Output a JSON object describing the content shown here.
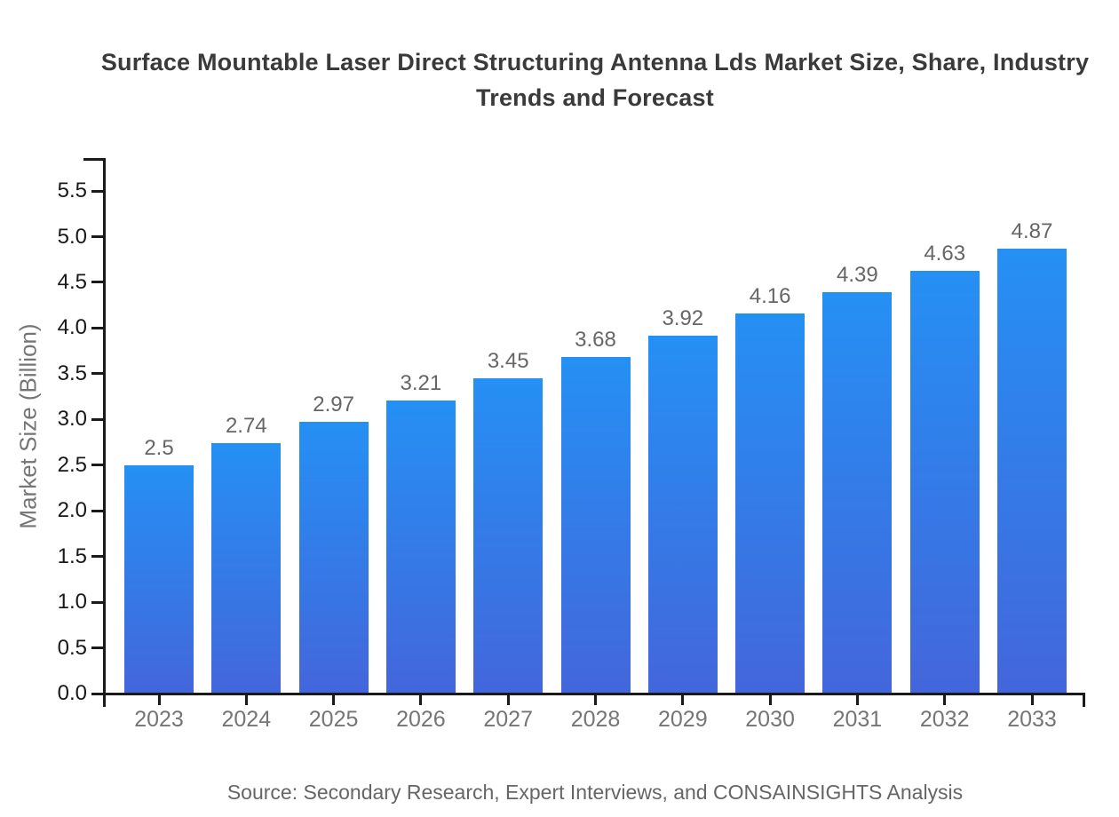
{
  "page": {
    "background_color": "#ffffff"
  },
  "chart_data": {
    "type": "bar",
    "title": "Surface Mountable Laser Direct Structuring Antenna Lds Market Size, Share, Industry Trends and Forecast",
    "ylabel": "Market Size (Billion)",
    "xlabel": "",
    "source_note": "Source: Secondary Research, Expert Interviews, and CONSAINSIGHTS Analysis",
    "categories": [
      "2023",
      "2024",
      "2025",
      "2026",
      "2027",
      "2028",
      "2029",
      "2030",
      "2031",
      "2032",
      "2033"
    ],
    "values": [
      2.5,
      2.74,
      2.97,
      3.21,
      3.45,
      3.68,
      3.92,
      4.16,
      4.39,
      4.63,
      4.87
    ],
    "value_labels": [
      "2.5",
      "2.74",
      "2.97",
      "3.21",
      "3.45",
      "3.68",
      "3.92",
      "4.16",
      "4.39",
      "4.63",
      "4.87"
    ],
    "ytick_labels": [
      "0.0",
      "0.5",
      "1.0",
      "1.5",
      "2.0",
      "2.5",
      "3.0",
      "3.5",
      "4.0",
      "4.5",
      "5.0",
      "5.5"
    ],
    "ylim": [
      0,
      5.86
    ],
    "grid": false,
    "legend_visible": false,
    "colors": {
      "bar_gradient_top": "#2590f4",
      "bar_gradient_bottom": "#4366db",
      "axis": "#1a1a1a",
      "title": "#3a3a3a",
      "ytick_label": "#181818",
      "category_label": "#757575",
      "value_label": "#666666",
      "axis_title": "#757575",
      "source": "#666666"
    }
  }
}
